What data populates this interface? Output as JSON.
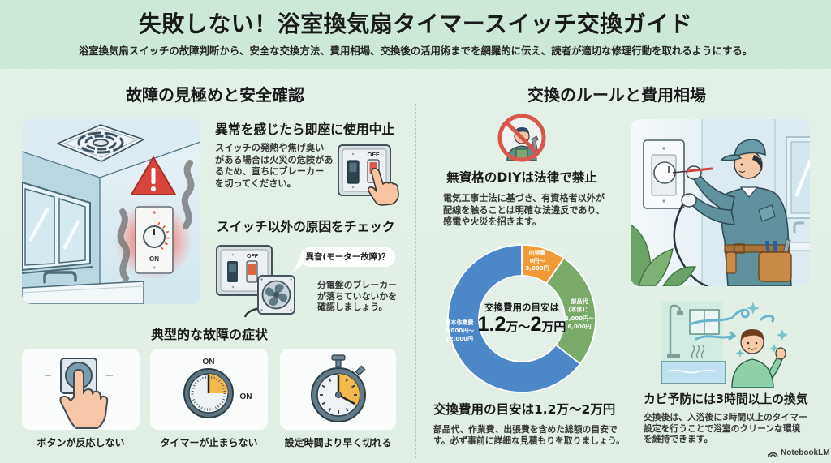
{
  "header": {
    "title": "失敗しない！浴室換気扇タイマースイッチ交換ガイド",
    "subtitle": "浴室換気扇スイッチの故障判断から、安全な交換方法、費用相場、交換後の活用術までを網羅的に伝え、読者が適切な修理行動を取れるようにする。"
  },
  "left": {
    "heading": "故障の見極めと安全確認",
    "illustration": {
      "switch_label": "ON"
    },
    "stop_use": {
      "title": "異常を感じたら即座に使用中止",
      "lines": [
        "スイッチの発熱や焦げ臭い",
        "がある場合は火災の危険があ",
        "るため、直ちにブレーカー",
        "を切ってください。"
      ]
    },
    "switch_icon": {
      "off_label": "OFF"
    },
    "check_other": {
      "title": "スイッチ以外の原因をチェック",
      "bubble": "異音(モーター故障)？",
      "breaker_off_label": "OFF",
      "lines": [
        "分電盤のブレーカー",
        "が落ちていないかを",
        "確認しましょう。"
      ]
    },
    "symptoms": {
      "heading": "典型的な故障の症状",
      "items": [
        {
          "label": "ボタンが反応しない"
        },
        {
          "label": "タイマーが止まらない",
          "dial_label_top": "ON",
          "dial_label_right": "ON"
        },
        {
          "label": "設定時間より早く切れる"
        }
      ]
    }
  },
  "right": {
    "heading": "交換のルールと費用相場",
    "diy": {
      "title": "無資格のDIYは法律で禁止",
      "lines": [
        "電気工事士法に基づき、有資格者以外が",
        "配線を触ることは明確な法違反であり、",
        "感電や火災を招きます。"
      ]
    },
    "cost_summary": {
      "title": "交換費用の目安は1.2万〜2万円",
      "lines": [
        "部品代、作業費、出張費を含めた総額の目安で",
        "す。必ず事前に詳細な見積もりを取りましょう。"
      ]
    },
    "ventilation": {
      "title": "カビ予防には3時間以上の換気",
      "lines": [
        "交換後は、入浴後に3時間以上のタイマー",
        "設定を行うことで浴室のクリーンな環境",
        "を維持できます。"
      ]
    }
  },
  "branding": {
    "label": "NotebookLM"
  },
  "chart_data": {
    "type": "pie",
    "variant": "donut",
    "title": "交換費用の目安は",
    "center_value": {
      "min": "1.2",
      "min_unit": "万",
      "separator": "〜",
      "max": "2",
      "max_unit": "万円"
    },
    "unit": "円",
    "categories": [
      "出張費",
      "部品代（本体）",
      "基本作業費"
    ],
    "values": [
      1500,
      4000,
      10000
    ],
    "series": [
      {
        "key": "travel",
        "label_lines": [
          "出張費",
          "0円〜",
          "3,000円"
        ],
        "min": 0,
        "max": 3000,
        "value": 1500,
        "color": "#f29a36"
      },
      {
        "key": "parts",
        "label_lines": [
          "部品代",
          "(本体)：",
          "2,000円〜",
          "6,000円"
        ],
        "min": 2000,
        "max": 6000,
        "value": 4000,
        "color": "#7aab68"
      },
      {
        "key": "labor",
        "label_lines": [
          "基本作業費",
          "8,000円〜",
          "12,000円"
        ],
        "min": 8000,
        "max": 12000,
        "value": 10000,
        "color": "#4c87c7"
      }
    ],
    "start_angle_deg": 0,
    "direction": "clockwise",
    "legend": "none"
  },
  "colors": {
    "header_bg": "#cde8d6",
    "page_bg": "#e3f0e7",
    "warning_red": "#d8453d",
    "accent_orange": "#f3b94a"
  }
}
